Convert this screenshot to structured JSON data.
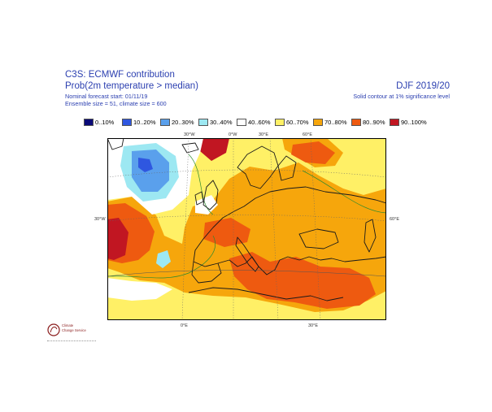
{
  "header": {
    "title": "C3S: ECMWF contribution",
    "subtitle": "Prob(2m temperature > median)",
    "forecast_start": "Nominal forecast start: 01/11/19",
    "ensemble": "Ensemble size = 51, climate size = 600",
    "season": "DJF 2019/20",
    "solid_contour_note": "Solid contour at 1% significance level"
  },
  "legend": [
    {
      "label": "0..10%",
      "color": "#0a0a78"
    },
    {
      "label": "10..20%",
      "color": "#2f57e0"
    },
    {
      "label": "20..30%",
      "color": "#5aa0ec"
    },
    {
      "label": "30..40%",
      "color": "#9de8f2"
    },
    {
      "label": "40..60%",
      "color": "#ffffff"
    },
    {
      "label": "60..70%",
      "color": "#fff066"
    },
    {
      "label": "70..80%",
      "color": "#f6a60c"
    },
    {
      "label": "80..90%",
      "color": "#ee5a10"
    },
    {
      "label": "90..100%",
      "color": "#c11622"
    }
  ],
  "map": {
    "top_ticks": [
      "30°W",
      "0°W",
      "30°E",
      "60°E"
    ],
    "bottom_ticks": [
      "0°E",
      "30°E"
    ],
    "left_tick": "30°W",
    "right_tick": "60°E"
  },
  "logo": {
    "name": "ecmwf-logo",
    "line1": "Climate",
    "line2": "Change Service"
  }
}
